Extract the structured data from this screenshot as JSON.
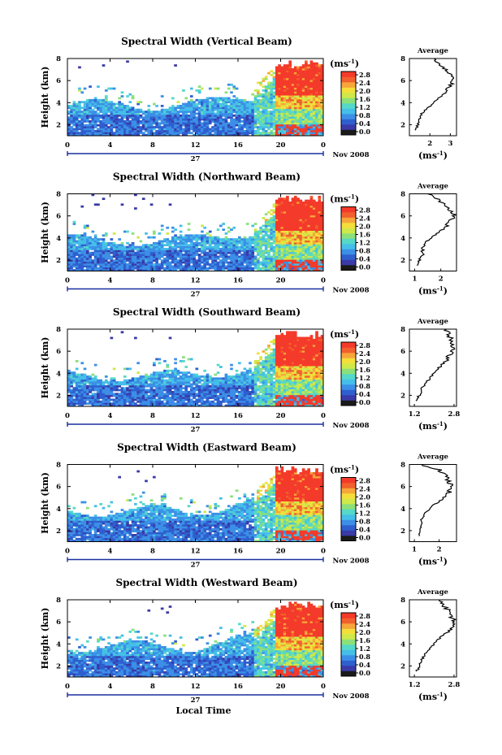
{
  "colors": {
    "colormap": [
      "#1a1a1a",
      "#3a3aa8",
      "#2f5fcf",
      "#3c8fe6",
      "#45bfe8",
      "#55d8c8",
      "#8ce07a",
      "#cfe84a",
      "#f4df3a",
      "#f7a63a",
      "#f2602e",
      "#f43a2a"
    ],
    "missing": "#ffffff",
    "profile_line": "#000000"
  },
  "chart_data": [
    {
      "type": "heatmap",
      "title": "Spectral Width (Vertical Beam)",
      "ylabel": "Height (km)",
      "ylim": [
        1,
        8
      ],
      "yticks": [
        "2",
        "4",
        "6",
        "8"
      ],
      "xticks": [
        "0",
        "4",
        "8",
        "12",
        "16",
        "20",
        "0"
      ],
      "xlim_hours": [
        0,
        24
      ],
      "date_day": "27",
      "date_month": "Nov 2008",
      "colorbar": {
        "unit": "(ms",
        "unit_sup": "-1",
        "unit_close": ")",
        "ticks": [
          "2.8",
          "2.4",
          "2.0",
          "1.6",
          "1.2",
          "0.8",
          "0.4",
          "0.0"
        ],
        "range": [
          0.0,
          2.8
        ]
      },
      "average": {
        "title": "Average",
        "xlabel": "(ms",
        "xlabel_sup": "-1",
        "xlabel_close": ")",
        "xticks": [
          "2",
          "3"
        ],
        "xlim": [
          1.0,
          3.3
        ],
        "ylim": [
          1,
          8
        ],
        "height_km": [
          1.5,
          2,
          2.5,
          3,
          3.5,
          4,
          4.5,
          5,
          5.5,
          6,
          6.5,
          7,
          7.5,
          8
        ],
        "value": [
          1.3,
          1.4,
          1.5,
          1.6,
          1.9,
          2.2,
          2.5,
          2.8,
          3.0,
          3.1,
          3.0,
          2.8,
          2.5,
          2.2
        ]
      }
    },
    {
      "type": "heatmap",
      "title": "Spectral Width (Northward Beam)",
      "ylabel": "Height (km)",
      "ylim": [
        1,
        8
      ],
      "yticks": [
        "2",
        "4",
        "6",
        "8"
      ],
      "xticks": [
        "0",
        "4",
        "8",
        "12",
        "16",
        "20",
        "0"
      ],
      "xlim_hours": [
        0,
        24
      ],
      "date_day": "27",
      "date_month": "Nov 2008",
      "colorbar": {
        "unit": "(ms",
        "unit_sup": "-1",
        "unit_close": ")",
        "ticks": [
          "2.8",
          "2.4",
          "2.0",
          "1.6",
          "1.2",
          "0.8",
          "0.4",
          "0.0"
        ],
        "range": [
          0.0,
          2.8
        ]
      },
      "average": {
        "title": "Average",
        "xlabel": "(ms",
        "xlabel_sup": "-1",
        "xlabel_close": ")",
        "xticks": [
          "1",
          "2"
        ],
        "xlim": [
          0.8,
          2.6
        ],
        "ylim": [
          1,
          8
        ],
        "height_km": [
          1.5,
          2,
          2.5,
          3,
          3.5,
          4,
          4.5,
          5,
          5.5,
          6,
          6.5,
          7,
          7.5,
          8
        ],
        "value": [
          1.1,
          1.2,
          1.3,
          1.3,
          1.4,
          1.6,
          1.9,
          2.2,
          2.4,
          2.5,
          2.4,
          2.2,
          1.9,
          1.5
        ]
      }
    },
    {
      "type": "heatmap",
      "title": "Spectral Width (Southward Beam)",
      "ylabel": "Height (km)",
      "ylim": [
        1,
        8
      ],
      "yticks": [
        "2",
        "4",
        "6",
        "8"
      ],
      "xticks": [
        "0",
        "4",
        "8",
        "12",
        "16",
        "20",
        "0"
      ],
      "xlim_hours": [
        0,
        24
      ],
      "date_day": "27",
      "date_month": "Nov 2008",
      "colorbar": {
        "unit": "(ms",
        "unit_sup": "-1",
        "unit_close": ")",
        "ticks": [
          "2.8",
          "2.4",
          "2.0",
          "1.6",
          "1.2",
          "0.8",
          "0.4",
          "0.0"
        ],
        "range": [
          0.0,
          2.8
        ]
      },
      "average": {
        "title": "Average",
        "xlabel": "(ms",
        "xlabel_sup": "-1",
        "xlabel_close": ")",
        "xticks": [
          "1.2",
          "2.8"
        ],
        "xlim": [
          1.0,
          2.9
        ],
        "ylim": [
          1,
          8
        ],
        "height_km": [
          1.5,
          2,
          2.5,
          3,
          3.5,
          4,
          4.5,
          5,
          5.5,
          6,
          6.5,
          7,
          7.5,
          8
        ],
        "value": [
          1.3,
          1.4,
          1.5,
          1.6,
          1.8,
          2.0,
          2.2,
          2.4,
          2.6,
          2.7,
          2.75,
          2.7,
          2.6,
          2.5
        ]
      }
    },
    {
      "type": "heatmap",
      "title": "Spectral Width (Eastward Beam)",
      "ylabel": "Height (km)",
      "ylim": [
        1,
        8
      ],
      "yticks": [
        "2",
        "4",
        "6",
        "8"
      ],
      "xticks": [
        "0",
        "4",
        "8",
        "12",
        "16",
        "20",
        "0"
      ],
      "xlim_hours": [
        0,
        24
      ],
      "date_day": "27",
      "date_month": "Nov 2008",
      "colorbar": {
        "unit": "(ms",
        "unit_sup": "-1",
        "unit_close": ")",
        "ticks": [
          "2.8",
          "2.4",
          "2.0",
          "1.6",
          "1.2",
          "0.8",
          "0.4",
          "0.0"
        ],
        "range": [
          0.0,
          2.8
        ]
      },
      "average": {
        "title": "Average",
        "xlabel": "(ms",
        "xlabel_sup": "-1",
        "xlabel_close": ")",
        "xticks": [
          "1",
          "2"
        ],
        "xlim": [
          0.8,
          2.7
        ],
        "ylim": [
          1,
          8
        ],
        "height_km": [
          1.5,
          2,
          2.5,
          3,
          3.5,
          4,
          4.5,
          5,
          5.5,
          6,
          6.5,
          7,
          7.5,
          8
        ],
        "value": [
          1.2,
          1.2,
          1.3,
          1.3,
          1.4,
          1.6,
          1.9,
          2.2,
          2.4,
          2.5,
          2.4,
          2.3,
          2.0,
          1.3
        ]
      }
    },
    {
      "type": "heatmap",
      "title": "Spectral Width (Westward Beam)",
      "ylabel": "Height (km)",
      "ylim": [
        1,
        8
      ],
      "yticks": [
        "2",
        "4",
        "6",
        "8"
      ],
      "xticks": [
        "0",
        "4",
        "8",
        "12",
        "16",
        "20",
        "0"
      ],
      "xlim_hours": [
        0,
        24
      ],
      "date_day": "27",
      "date_month": "Nov 2008",
      "xlabel": "Local Time",
      "colorbar": {
        "unit": "(ms",
        "unit_sup": "-1",
        "unit_close": ")",
        "ticks": [
          "2.8",
          "2.4",
          "2.0",
          "1.6",
          "1.2",
          "0.8",
          "0.4",
          "0.0"
        ],
        "range": [
          0.0,
          2.8
        ]
      },
      "average": {
        "title": "Average",
        "xlabel": "(ms",
        "xlabel_sup": "-1",
        "xlabel_close": ")",
        "xticks": [
          "1.2",
          "2.8"
        ],
        "xlim": [
          1.0,
          2.9
        ],
        "ylim": [
          1,
          8
        ],
        "height_km": [
          1.5,
          2,
          2.5,
          3,
          3.5,
          4,
          4.5,
          5,
          5.5,
          6,
          6.5,
          7,
          7.5,
          8
        ],
        "value": [
          1.3,
          1.4,
          1.5,
          1.6,
          1.8,
          2.0,
          2.2,
          2.5,
          2.7,
          2.8,
          2.7,
          2.6,
          2.4,
          2.2
        ]
      }
    }
  ]
}
